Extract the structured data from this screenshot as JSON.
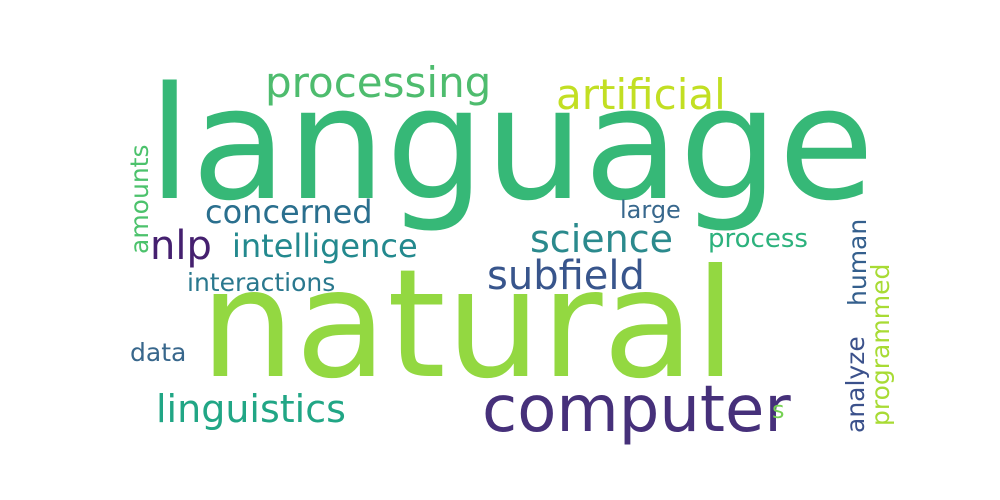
{
  "words": [
    {
      "text": "language",
      "color": "#36b877"
    },
    {
      "text": "natural",
      "color": "#93d841"
    },
    {
      "text": "computer",
      "color": "#46307a"
    },
    {
      "text": "processing",
      "color": "#4ebc6e"
    },
    {
      "text": "artificial",
      "color": "#c2df23"
    },
    {
      "text": "concerned",
      "color": "#2a6f8e"
    },
    {
      "text": "nlp",
      "color": "#45206f"
    },
    {
      "text": "intelligence",
      "color": "#23898e"
    },
    {
      "text": "science",
      "color": "#2b8a8d"
    },
    {
      "text": "subfield",
      "color": "#38558c"
    },
    {
      "text": "large",
      "color": "#38688d"
    },
    {
      "text": "process",
      "color": "#2db27d"
    },
    {
      "text": "interactions",
      "color": "#2a788e"
    },
    {
      "text": "linguistics",
      "color": "#21a685"
    },
    {
      "text": "data",
      "color": "#38678c"
    },
    {
      "text": "amounts",
      "color": "#4cc26c"
    },
    {
      "text": "human",
      "color": "#345f8d"
    },
    {
      "text": "analyze",
      "color": "#3b518b"
    },
    {
      "text": "programmed",
      "color": "#a8db34"
    },
    {
      "text": "s",
      "color": "#76d153"
    }
  ]
}
